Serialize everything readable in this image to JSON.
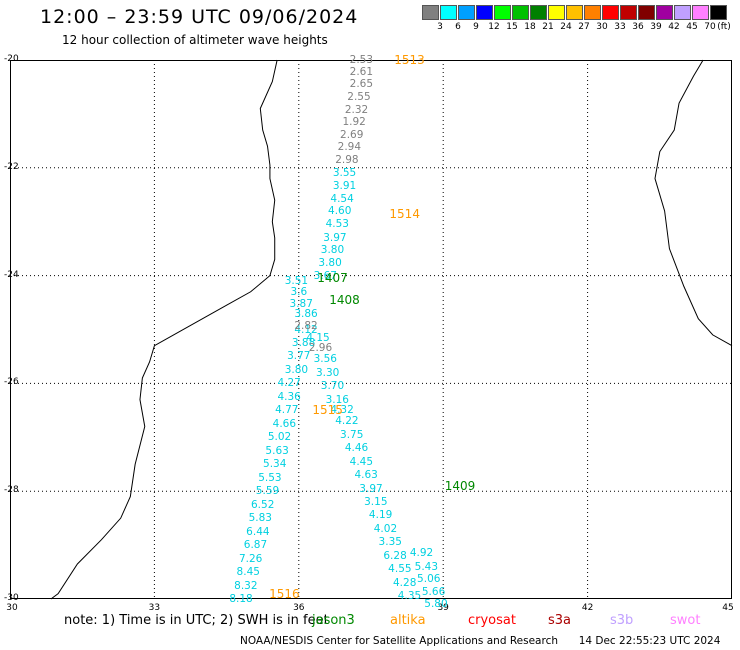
{
  "header": {
    "title": "12:00 – 23:59 UTC 09/06/2024",
    "subtitle": "12 hour collection of altimeter wave heights"
  },
  "legend": {
    "unit": "(ft)",
    "items": [
      {
        "label": "3",
        "color": "#808080"
      },
      {
        "label": "6",
        "color": "#00ffff"
      },
      {
        "label": "9",
        "color": "#00a0ff"
      },
      {
        "label": "12",
        "color": "#0000ff"
      },
      {
        "label": "15",
        "color": "#00ff00"
      },
      {
        "label": "18",
        "color": "#00c000"
      },
      {
        "label": "21",
        "color": "#008000"
      },
      {
        "label": "24",
        "color": "#ffff00"
      },
      {
        "label": "27",
        "color": "#ffc000"
      },
      {
        "label": "30",
        "color": "#ff8000"
      },
      {
        "label": "33",
        "color": "#ff0000"
      },
      {
        "label": "36",
        "color": "#c00000"
      },
      {
        "label": "39",
        "color": "#800000"
      },
      {
        "label": "42",
        "color": "#a000a0"
      },
      {
        "label": "45",
        "color": "#c0a0ff"
      },
      {
        "label": "70",
        "color": "#ff80ff"
      },
      {
        "label": "",
        "color": "#000000"
      }
    ]
  },
  "axes": {
    "lat_labels": [
      "-20",
      "-22",
      "-24",
      "-26",
      "-28",
      "-30"
    ],
    "lon_labels": [
      "30",
      "33",
      "36",
      "39",
      "42",
      "45"
    ]
  },
  "map": {
    "extent": {
      "lon": [
        30,
        45
      ],
      "lat": [
        -20,
        -30
      ]
    },
    "coast_color": "#000000",
    "grid_color": "#000000"
  },
  "tracks": [
    {
      "name": "gray-north",
      "color": "#808080",
      "points": [
        {
          "lon": 37.3,
          "lat": -20.0,
          "v": "2.53"
        },
        {
          "lon": 37.3,
          "lat": -20.22,
          "v": "2.61"
        },
        {
          "lon": 37.3,
          "lat": -20.45,
          "v": "2.65"
        },
        {
          "lon": 37.25,
          "lat": -20.68,
          "v": "2.55"
        },
        {
          "lon": 37.2,
          "lat": -20.92,
          "v": "2.32"
        },
        {
          "lon": 37.15,
          "lat": -21.15,
          "v": "1.92"
        },
        {
          "lon": 37.1,
          "lat": -21.4,
          "v": "2.69"
        },
        {
          "lon": 37.05,
          "lat": -21.62,
          "v": "2.94"
        },
        {
          "lon": 37.0,
          "lat": -21.85,
          "v": "2.98"
        }
      ]
    },
    {
      "name": "cyan-north",
      "color": "#00d0e0",
      "points": [
        {
          "lon": 36.95,
          "lat": -22.1,
          "v": "3.55"
        },
        {
          "lon": 36.95,
          "lat": -22.33,
          "v": "3.91"
        },
        {
          "lon": 36.9,
          "lat": -22.57,
          "v": "4.54"
        },
        {
          "lon": 36.85,
          "lat": -22.8,
          "v": "4.60"
        },
        {
          "lon": 36.8,
          "lat": -23.05,
          "v": "4.53"
        },
        {
          "lon": 36.75,
          "lat": -23.3,
          "v": "3.97"
        },
        {
          "lon": 36.7,
          "lat": -23.53,
          "v": "3.80"
        },
        {
          "lon": 36.65,
          "lat": -23.77,
          "v": "3.80"
        },
        {
          "lon": 36.55,
          "lat": -24.0,
          "v": "3.67"
        }
      ]
    },
    {
      "name": "cyan-west",
      "color": "#00d0e0",
      "points": [
        {
          "lon": 35.95,
          "lat": -24.1,
          "v": "3.51"
        },
        {
          "lon": 36.0,
          "lat": -24.3,
          "v": "3.6"
        },
        {
          "lon": 36.05,
          "lat": -24.52,
          "v": "3.87"
        },
        {
          "lon": 36.15,
          "lat": -24.72,
          "v": "3.86"
        },
        {
          "lon": 36.15,
          "lat": -25.0,
          "v": "4.12"
        },
        {
          "lon": 36.1,
          "lat": -25.25,
          "v": "3.88"
        },
        {
          "lon": 36.0,
          "lat": -25.5,
          "v": "3.77"
        },
        {
          "lon": 35.95,
          "lat": -25.75,
          "v": "3.80"
        },
        {
          "lon": 35.8,
          "lat": -26.0,
          "v": "4.27"
        },
        {
          "lon": 35.8,
          "lat": -26.25,
          "v": "4.36"
        },
        {
          "lon": 35.75,
          "lat": -26.5,
          "v": "4.77"
        },
        {
          "lon": 35.7,
          "lat": -26.75,
          "v": "4.66"
        },
        {
          "lon": 35.6,
          "lat": -27.0,
          "v": "5.02"
        },
        {
          "lon": 35.55,
          "lat": -27.25,
          "v": "5.63"
        },
        {
          "lon": 35.5,
          "lat": -27.5,
          "v": "5.34"
        },
        {
          "lon": 35.4,
          "lat": -27.75,
          "v": "5.53"
        },
        {
          "lon": 35.35,
          "lat": -28.0,
          "v": "5.59"
        },
        {
          "lon": 35.25,
          "lat": -28.25,
          "v": "6.52"
        },
        {
          "lon": 35.2,
          "lat": -28.5,
          "v": "5.83"
        },
        {
          "lon": 35.15,
          "lat": -28.75,
          "v": "6.44"
        },
        {
          "lon": 35.1,
          "lat": -29.0,
          "v": "6.87"
        },
        {
          "lon": 35.0,
          "lat": -29.25,
          "v": "7.26"
        },
        {
          "lon": 34.95,
          "lat": -29.5,
          "v": "8.45"
        },
        {
          "lon": 34.9,
          "lat": -29.75,
          "v": "8.32"
        },
        {
          "lon": 34.8,
          "lat": -30.0,
          "v": "8.18"
        }
      ]
    },
    {
      "name": "gray-mid",
      "color": "#808080",
      "points": [
        {
          "lon": 36.15,
          "lat": -24.93,
          "v": "2.82"
        },
        {
          "lon": 36.45,
          "lat": -25.35,
          "v": "2.96"
        }
      ]
    },
    {
      "name": "cyan-east",
      "color": "#00d0e0",
      "points": [
        {
          "lon": 36.4,
          "lat": -25.15,
          "v": "4.15"
        },
        {
          "lon": 36.55,
          "lat": -25.55,
          "v": "3.56"
        },
        {
          "lon": 36.6,
          "lat": -25.8,
          "v": "3.30"
        },
        {
          "lon": 36.7,
          "lat": -26.05,
          "v": "3.70"
        },
        {
          "lon": 36.8,
          "lat": -26.3,
          "v": "3.16"
        },
        {
          "lon": 36.9,
          "lat": -26.5,
          "v": "4.32"
        },
        {
          "lon": 37.0,
          "lat": -26.7,
          "v": "4.22"
        },
        {
          "lon": 37.1,
          "lat": -26.95,
          "v": "3.75"
        },
        {
          "lon": 37.2,
          "lat": -27.2,
          "v": "4.46"
        },
        {
          "lon": 37.3,
          "lat": -27.45,
          "v": "4.45"
        },
        {
          "lon": 37.4,
          "lat": -27.7,
          "v": "4.63"
        },
        {
          "lon": 37.5,
          "lat": -27.95,
          "v": "3.97"
        },
        {
          "lon": 37.6,
          "lat": -28.2,
          "v": "3.15"
        },
        {
          "lon": 37.7,
          "lat": -28.45,
          "v": "4.19"
        },
        {
          "lon": 37.8,
          "lat": -28.7,
          "v": "4.02"
        },
        {
          "lon": 37.9,
          "lat": -28.95,
          "v": "3.35"
        },
        {
          "lon": 38.0,
          "lat": -29.2,
          "v": "6.28"
        },
        {
          "lon": 38.1,
          "lat": -29.45,
          "v": "4.55"
        },
        {
          "lon": 38.2,
          "lat": -29.7,
          "v": "4.28"
        },
        {
          "lon": 38.3,
          "lat": -29.95,
          "v": "4.35"
        }
      ]
    },
    {
      "name": "cyan-east-2",
      "color": "#00d0e0",
      "points": [
        {
          "lon": 38.55,
          "lat": -29.15,
          "v": "4.92"
        },
        {
          "lon": 38.65,
          "lat": -29.4,
          "v": "5.43"
        },
        {
          "lon": 38.7,
          "lat": -29.63,
          "v": "5.06"
        },
        {
          "lon": 38.8,
          "lat": -29.87,
          "v": "5.66"
        },
        {
          "lon": 38.85,
          "lat": -30.1,
          "v": "5.80"
        }
      ]
    }
  ],
  "passes": [
    {
      "lon": 38.3,
      "lat": -20.0,
      "label": "1513",
      "color": "#ff9900"
    },
    {
      "lon": 38.2,
      "lat": -22.85,
      "label": "1514",
      "color": "#ff9900"
    },
    {
      "lon": 36.7,
      "lat": -24.05,
      "label": "1407",
      "color": "#008800"
    },
    {
      "lon": 36.95,
      "lat": -24.45,
      "label": "1408",
      "color": "#008800"
    },
    {
      "lon": 36.6,
      "lat": -26.5,
      "label": "1515",
      "color": "#ff9900"
    },
    {
      "lon": 39.35,
      "lat": -27.9,
      "label": "1409",
      "color": "#008800"
    },
    {
      "lon": 35.7,
      "lat": -29.9,
      "label": "1516",
      "color": "#ff9900"
    }
  ],
  "note": {
    "text": "note: 1) Time is in UTC; 2) SWH is in feet"
  },
  "satellites": [
    {
      "name": "jason3",
      "color": "#008800"
    },
    {
      "name": "altika",
      "color": "#ff9900"
    },
    {
      "name": "cryosat",
      "color": "#ff0000"
    },
    {
      "name": "s3a",
      "color": "#aa0000"
    },
    {
      "name": "s3b",
      "color": "#c0a0ff"
    },
    {
      "name": "swot",
      "color": "#ff80ff"
    }
  ],
  "footer": {
    "credit": "NOAA/NESDIS Center for Satellite Applications and Research",
    "timestamp": "14 Dec 22:55:23 UTC 2024"
  }
}
